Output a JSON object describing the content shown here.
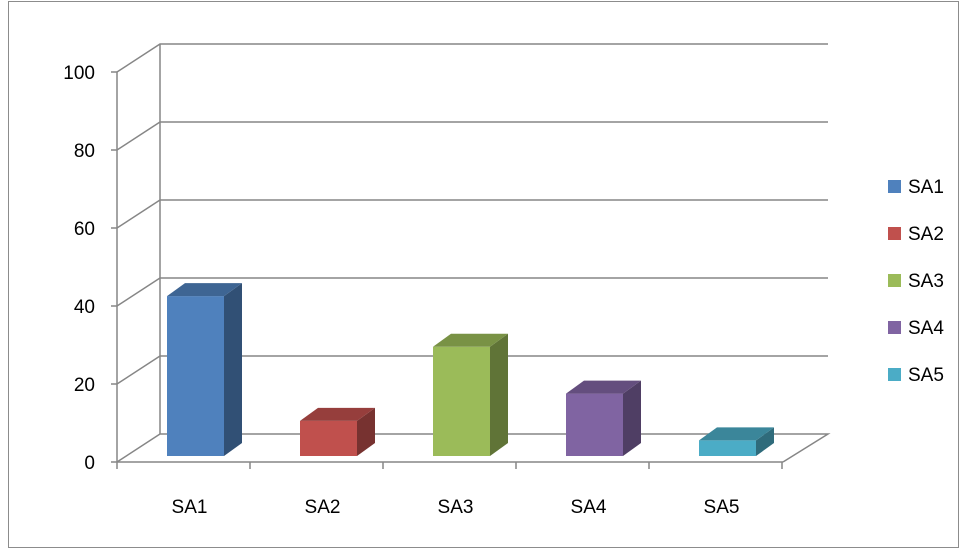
{
  "chart_data": {
    "type": "bar",
    "style": "3d-column",
    "categories": [
      "SA1",
      "SA2",
      "SA3",
      "SA4",
      "SA5"
    ],
    "series": [
      {
        "name": "SA1",
        "category": "SA1",
        "value": 41,
        "color": "#4F81BD"
      },
      {
        "name": "SA2",
        "category": "SA2",
        "value": 9,
        "color": "#C0504D"
      },
      {
        "name": "SA3",
        "category": "SA3",
        "value": 28,
        "color": "#9BBB59"
      },
      {
        "name": "SA4",
        "category": "SA4",
        "value": 16,
        "color": "#8064A2"
      },
      {
        "name": "SA5",
        "category": "SA5",
        "value": 4,
        "color": "#4BACC6"
      }
    ],
    "ylim": [
      0,
      100
    ],
    "yticks": [
      0,
      20,
      40,
      60,
      80,
      100
    ],
    "grid": true,
    "legend": "right",
    "title": "",
    "xlabel": "",
    "ylabel": ""
  }
}
